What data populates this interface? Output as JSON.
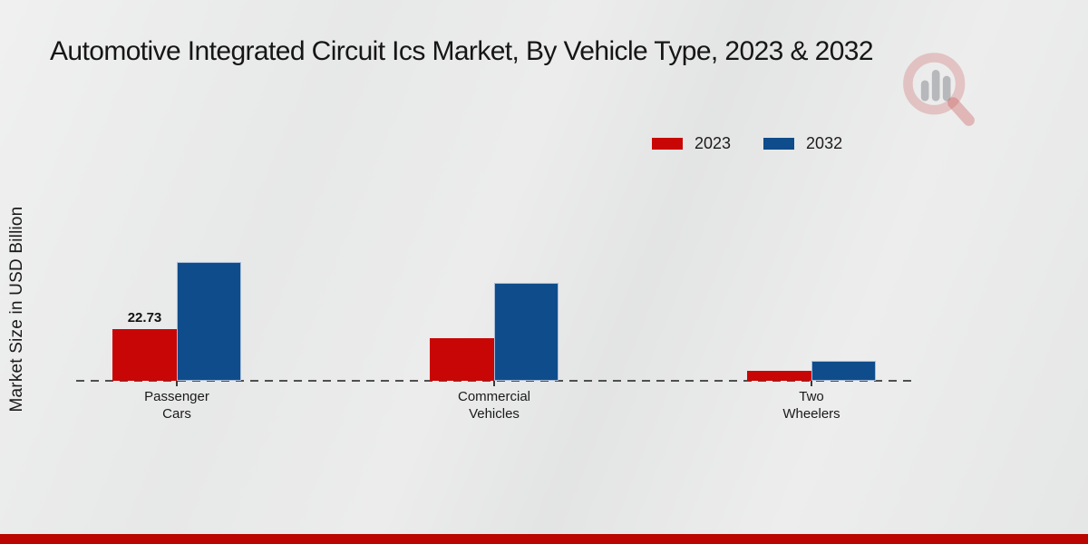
{
  "meta": {
    "background_color": "#e8e9e9",
    "accent_red": "#bb0502"
  },
  "header": {
    "title": "Automotive Integrated Circuit Ics Market, By Vehicle Type, 2023 & 2032",
    "watermark_icon": "magnifier-bar-chart-icon"
  },
  "chart_data": {
    "type": "bar",
    "title": "Automotive Integrated Circuit Ics Market, By Vehicle Type, 2023 & 2032",
    "ylabel": "Market Size in USD Billion",
    "xlabel": "",
    "categories": [
      "Passenger Cars",
      "Commercial Vehicles",
      "Two Wheelers"
    ],
    "series": [
      {
        "name": "2023",
        "color": "#c90606",
        "values": [
          22.73,
          18.8,
          4.4
        ]
      },
      {
        "name": "2032",
        "color": "#0f4c8b",
        "values": [
          52.4,
          43.2,
          8.8
        ]
      }
    ],
    "annotations": [
      {
        "series": "2023",
        "category": "Passenger Cars",
        "text": "22.73"
      }
    ],
    "legend": {
      "position": "top-right",
      "entries": [
        "2023",
        "2032"
      ]
    },
    "baseline": {
      "style": "dashed",
      "color": "#4f4f4f"
    },
    "ylim": [
      0,
      60
    ],
    "grid": false
  }
}
